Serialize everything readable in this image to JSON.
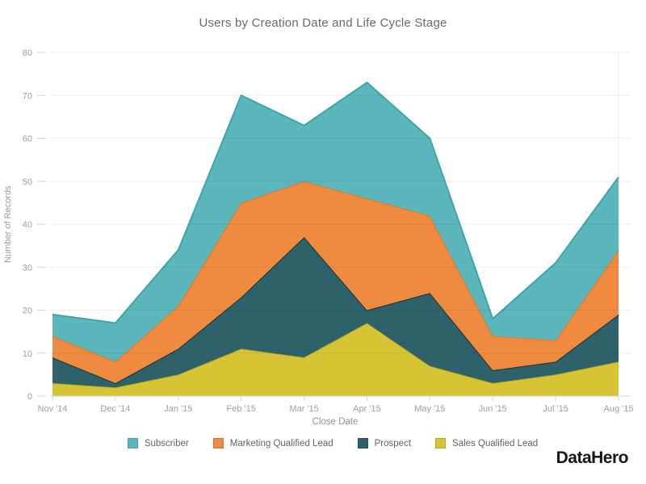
{
  "chart_data": {
    "type": "area",
    "stacked": true,
    "title": "Users by Creation Date and Life Cycle Stage",
    "xlabel": "Close Date",
    "ylabel": "Number of Records",
    "categories": [
      "Nov '14",
      "Dec '14",
      "Jan '15",
      "Feb '15",
      "Mar '15",
      "Apr '15",
      "May '15",
      "Jun '15",
      "Jul '15",
      "Aug '15"
    ],
    "ylim": [
      0,
      80
    ],
    "yticks": [
      0,
      10,
      20,
      30,
      40,
      50,
      60,
      70,
      80
    ],
    "grid": "horizontal",
    "legend_position": "bottom",
    "series": [
      {
        "name": "Sales Qualified Lead",
        "color": "#d7c434",
        "edge_color": "#c1ac20",
        "values": [
          3,
          2,
          5,
          11,
          9,
          17,
          7,
          3,
          5,
          8
        ],
        "stacked_top": [
          3,
          2,
          5,
          11,
          9,
          17,
          7,
          3,
          5,
          8
        ]
      },
      {
        "name": "Prospect",
        "color": "#2e626b",
        "edge_color": "#14333b",
        "values": [
          6,
          1,
          6,
          12,
          28,
          3,
          17,
          3,
          3,
          11
        ],
        "stacked_top": [
          9,
          3,
          11,
          23,
          37,
          20,
          24,
          6,
          8,
          19
        ]
      },
      {
        "name": "Marketing Qualified Lead",
        "color": "#ef8b41",
        "edge_color": "#e37723",
        "values": [
          5,
          5,
          10,
          22,
          13,
          26,
          18,
          8,
          5,
          15
        ],
        "stacked_top": [
          14,
          8,
          21,
          45,
          50,
          46,
          42,
          14,
          13,
          34
        ]
      },
      {
        "name": "Subscriber",
        "color": "#5bb7bb",
        "edge_color": "#3da4aa",
        "values": [
          5,
          9,
          13,
          25,
          13,
          27,
          18,
          4,
          18,
          17
        ],
        "stacked_top": [
          19,
          17,
          34,
          70,
          63,
          73,
          60,
          18,
          31,
          51
        ]
      }
    ],
    "legend": [
      "Subscriber",
      "Marketing Qualified Lead",
      "Prospect",
      "Sales Qualified Lead"
    ],
    "axis_colors": {
      "tick_label": "#9b9fa2",
      "tick_mark": "#d6d6d6",
      "baseline": "#d6d6d6",
      "gridline": "rgba(0,0,0,0.07)"
    }
  },
  "branding": {
    "logo_text": "DataHero"
  }
}
